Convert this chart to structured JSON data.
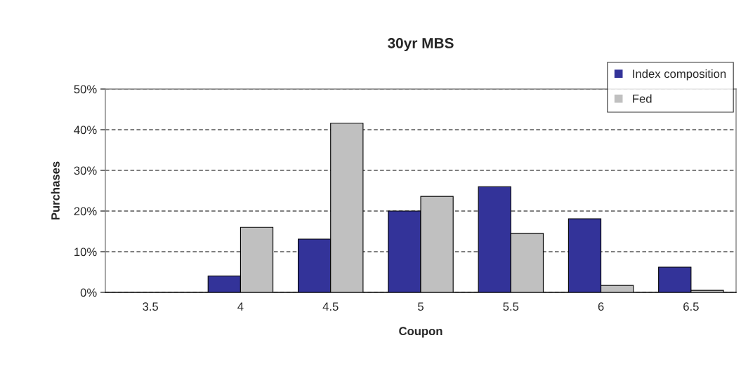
{
  "chart_data": {
    "type": "bar",
    "title": "30yr MBS",
    "xlabel": "Coupon",
    "ylabel": "Purchases",
    "categories": [
      "3.5",
      "4",
      "4.5",
      "5",
      "5.5",
      "6",
      "6.5"
    ],
    "series": [
      {
        "name": "Index composition",
        "color": "#333399",
        "values": [
          0,
          4.0,
          13.1,
          20.0,
          26.0,
          18.1,
          6.2
        ]
      },
      {
        "name": "Fed",
        "color": "#c0c0c0",
        "values": [
          0,
          16.0,
          41.6,
          23.6,
          14.5,
          1.7,
          0.5
        ]
      }
    ],
    "ylim": [
      0,
      50
    ],
    "yticks": [
      {
        "value": 0,
        "label": "0%"
      },
      {
        "value": 10,
        "label": "10%"
      },
      {
        "value": 20,
        "label": "20%"
      },
      {
        "value": 30,
        "label": "30%"
      },
      {
        "value": 40,
        "label": "40%"
      },
      {
        "value": 50,
        "label": "50%"
      }
    ],
    "grid": "y",
    "legend": "top right"
  }
}
